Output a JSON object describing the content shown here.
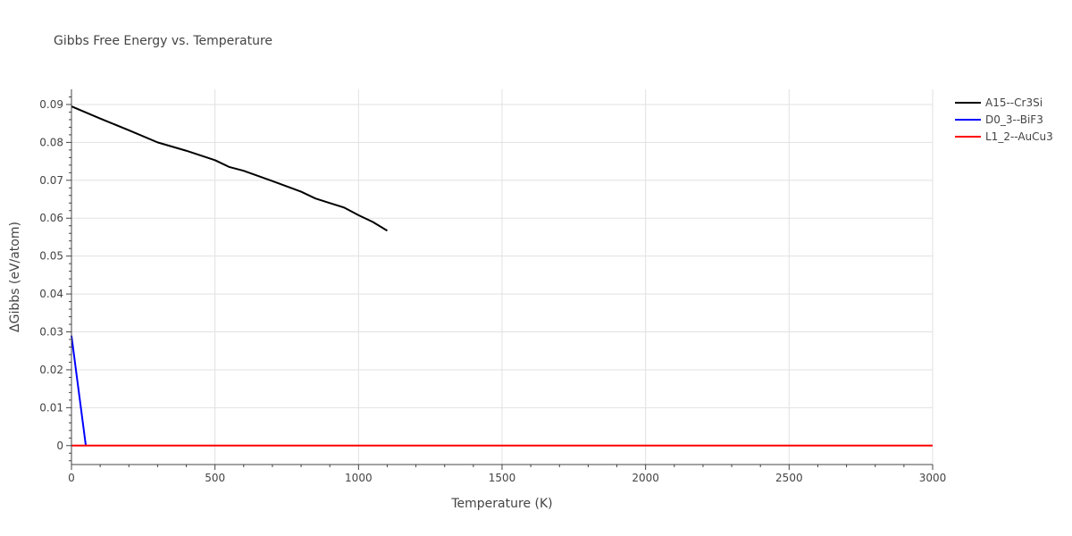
{
  "chart_data": {
    "type": "line",
    "title": "Gibbs Free Energy vs. Temperature",
    "xlabel": "Temperature (K)",
    "ylabel": "ΔGibbs (eV/atom)",
    "xlim": [
      0,
      3000
    ],
    "ylim": [
      -0.005,
      0.094
    ],
    "xticks": [
      0,
      500,
      1000,
      1500,
      2000,
      2500,
      3000
    ],
    "xtick_labels": [
      "0",
      "500",
      "1000",
      "1500",
      "2000",
      "2500",
      "3000"
    ],
    "yticks": [
      0,
      0.01,
      0.02,
      0.03,
      0.04,
      0.05,
      0.06,
      0.07,
      0.08,
      0.09
    ],
    "ytick_labels": [
      "0",
      "0.01",
      "0.02",
      "0.03",
      "0.04",
      "0.05",
      "0.06",
      "0.07",
      "0.08",
      "0.09"
    ],
    "grid": true,
    "legend_position": "top-right",
    "series": [
      {
        "name": "A15--Cr3Si",
        "color": "#000000",
        "x": [
          0,
          100,
          200,
          300,
          400,
          500,
          550,
          600,
          700,
          800,
          850,
          900,
          950,
          1000,
          1050,
          1100
        ],
        "y": [
          0.0895,
          0.0863,
          0.0832,
          0.08,
          0.0778,
          0.0753,
          0.0735,
          0.0725,
          0.0698,
          0.067,
          0.0652,
          0.064,
          0.0628,
          0.0608,
          0.059,
          0.0567
        ]
      },
      {
        "name": "D0_3--BiF3",
        "color": "#0000ff",
        "x": [
          0,
          50
        ],
        "y": [
          0.029,
          0.0
        ]
      },
      {
        "name": "L1_2--AuCu3",
        "color": "#ff0000",
        "x": [
          0,
          3000
        ],
        "y": [
          0.0,
          0.0
        ]
      }
    ]
  }
}
